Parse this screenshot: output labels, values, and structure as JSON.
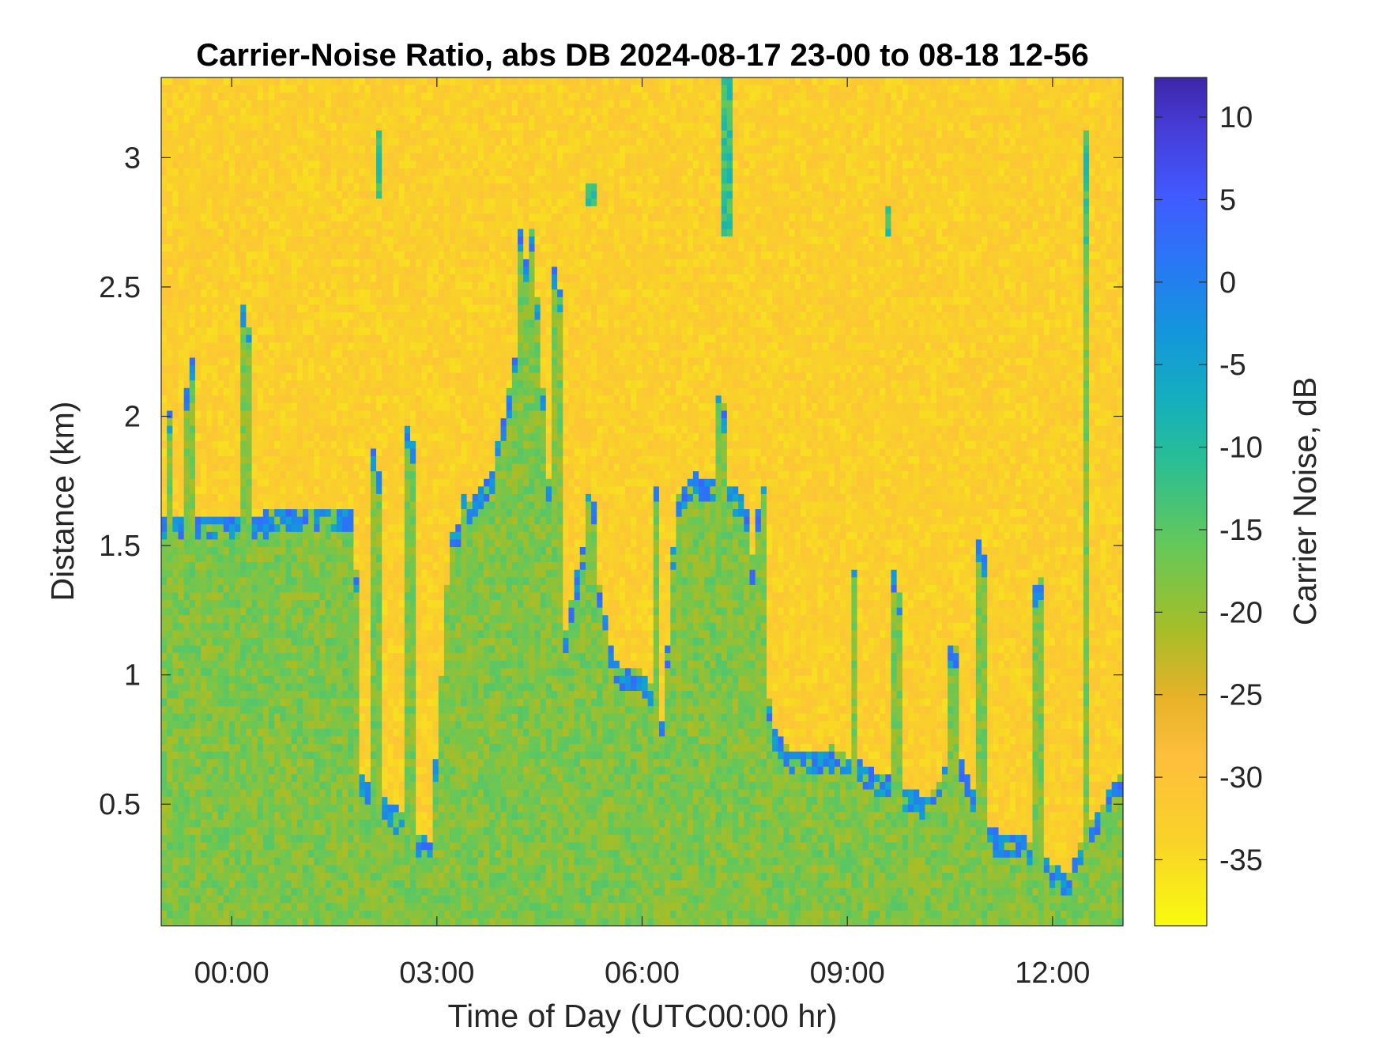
{
  "chart_data": {
    "type": "heatmap",
    "title": "Carrier-Noise Ratio, abs DB 2024-08-17 23-00 to 08-18 12-56",
    "xlabel": "Time of Day (UTC00:00 hr)",
    "ylabel": "Distance (km)",
    "colorbar_label": "Carrier Noise, dB",
    "x_ticks": [
      "00:00",
      "03:00",
      "06:00",
      "09:00",
      "12:00"
    ],
    "x_tick_hours": [
      0,
      3,
      6,
      9,
      12
    ],
    "xlim_hours": [
      -1.03,
      13.03
    ],
    "y_ticks": [
      "0.5",
      "1",
      "1.5",
      "2",
      "2.5",
      "3"
    ],
    "y_tick_values": [
      0.5,
      1,
      1.5,
      2,
      2.5,
      3
    ],
    "ylim": [
      0.03,
      3.31
    ],
    "clim": [
      -39,
      12.4
    ],
    "colorbar_ticks": [
      "10",
      "5",
      "0",
      "-5",
      "-10",
      "-15",
      "-20",
      "-25",
      "-30",
      "-35"
    ],
    "colorbar_tick_values": [
      10,
      5,
      0,
      -5,
      -10,
      -15,
      -20,
      -25,
      -30,
      -35
    ],
    "colormap": "parula (reversed)",
    "background_level_db": -33,
    "aerosol_layer_level_db": -18,
    "strong_return_level_db": 4,
    "layer_top_km": [
      [
        -1.0,
        1.6
      ],
      [
        1.8,
        1.65
      ],
      [
        1.9,
        0.62
      ],
      [
        2.9,
        0.35
      ],
      [
        3.2,
        1.55
      ],
      [
        3.8,
        1.78
      ],
      [
        4.1,
        2.15
      ],
      [
        4.4,
        2.75
      ],
      [
        4.8,
        1.05
      ],
      [
        5.2,
        1.6
      ],
      [
        5.6,
        1.05
      ],
      [
        6.1,
        1.0
      ],
      [
        6.3,
        0.8
      ],
      [
        6.5,
        1.7
      ],
      [
        6.8,
        1.78
      ],
      [
        7.5,
        1.7
      ],
      [
        7.9,
        0.82
      ],
      [
        8.2,
        0.7
      ],
      [
        8.8,
        0.72
      ],
      [
        9.5,
        0.62
      ],
      [
        10.2,
        0.52
      ],
      [
        10.6,
        0.72
      ],
      [
        11.1,
        0.4
      ],
      [
        11.6,
        0.38
      ],
      [
        12.2,
        0.22
      ],
      [
        12.6,
        0.45
      ],
      [
        13.0,
        0.62
      ]
    ],
    "updraft_columns": [
      {
        "hour": -0.9,
        "top_km": 2.05
      },
      {
        "hour": -0.6,
        "top_km": 2.3
      },
      {
        "hour": 0.2,
        "top_km": 2.55
      },
      {
        "hour": 2.1,
        "top_km": 1.95
      },
      {
        "hour": 2.6,
        "top_km": 2.05
      },
      {
        "hour": 3.4,
        "top_km": 1.7
      },
      {
        "hour": 4.25,
        "top_km": 2.85
      },
      {
        "hour": 4.75,
        "top_km": 2.7
      },
      {
        "hour": 5.25,
        "top_km": 1.8
      },
      {
        "hour": 6.2,
        "top_km": 1.75
      },
      {
        "hour": 7.15,
        "top_km": 2.2
      },
      {
        "hour": 7.75,
        "top_km": 1.8
      },
      {
        "hour": 9.1,
        "top_km": 1.4
      },
      {
        "hour": 9.7,
        "top_km": 1.45
      },
      {
        "hour": 10.55,
        "top_km": 1.2
      },
      {
        "hour": 10.95,
        "top_km": 1.6
      },
      {
        "hour": 11.8,
        "top_km": 1.45
      },
      {
        "hour": 12.5,
        "top_km": 3.05
      }
    ],
    "isolated_returns": [
      {
        "hour": 2.15,
        "from_km": 2.85,
        "to_km": 3.1
      },
      {
        "hour": 5.25,
        "from_km": 2.8,
        "to_km": 2.9
      },
      {
        "hour": 7.25,
        "from_km": 2.7,
        "to_km": 3.3
      },
      {
        "hour": 9.6,
        "from_km": 2.7,
        "to_km": 2.8
      },
      {
        "hour": 12.5,
        "from_km": 2.6,
        "to_km": 3.1
      }
    ]
  }
}
